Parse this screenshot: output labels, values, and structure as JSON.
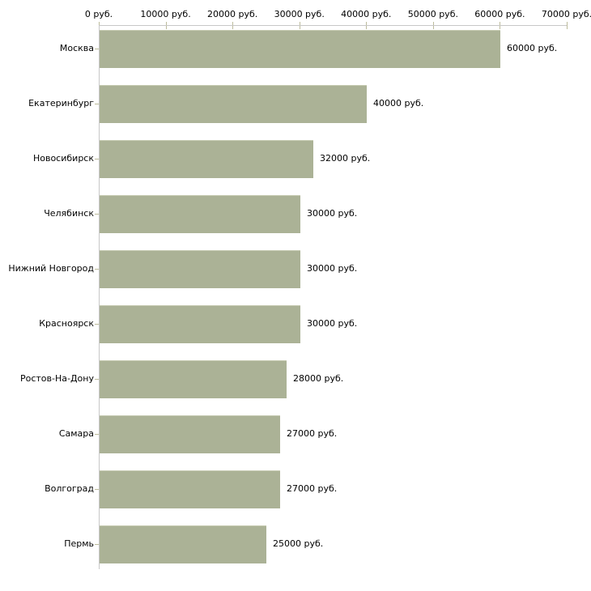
{
  "chart_data": {
    "type": "bar",
    "orientation": "horizontal",
    "title": "",
    "xlabel": "",
    "ylabel": "",
    "unit": "руб.",
    "categories": [
      "Москва",
      "Екатеринбург",
      "Новосибирск",
      "Челябинск",
      "Нижний Новгород",
      "Красноярск",
      "Ростов-На-Дону",
      "Самара",
      "Волгоград",
      "Пермь"
    ],
    "values": [
      60000,
      40000,
      32000,
      30000,
      30000,
      30000,
      28000,
      27000,
      27000,
      25000
    ],
    "value_labels": [
      "60000 руб.",
      "40000 руб.",
      "32000 руб.",
      "30000 руб.",
      "30000 руб.",
      "30000 руб.",
      "28000 руб.",
      "27000 руб.",
      "27000 руб.",
      "25000 руб."
    ],
    "x_tick_labels": [
      "0 руб.",
      "10000 руб.",
      "20000 руб.",
      "30000 руб.",
      "40000 руб.",
      "50000 руб.",
      "60000 руб.",
      "70000 руб."
    ],
    "xlim": [
      0,
      70000
    ],
    "x_tick_step": 10000,
    "grid": false,
    "legend": false,
    "colors": {
      "bar_fill": "#abb296",
      "bar_edge": "#c6cab1",
      "axis_line": "#c8c8c8",
      "tick_mark": "#bcbb9b",
      "text": "#000000",
      "background": "#ffffff"
    }
  }
}
